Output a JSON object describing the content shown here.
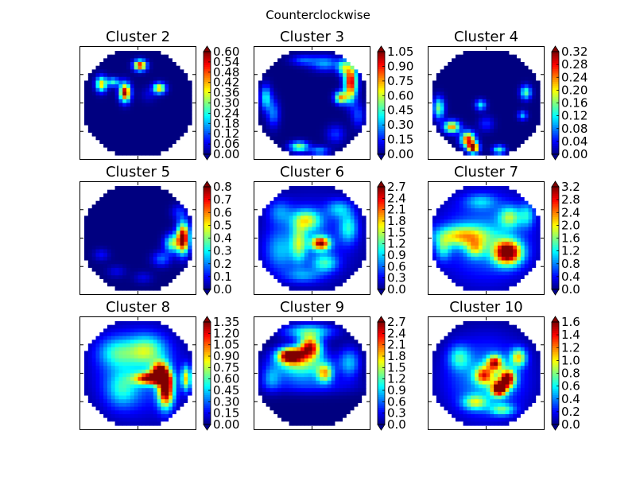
{
  "figure_title": "Counterclockwise",
  "chart_data": {
    "type": "heatmap",
    "colormap": "jet",
    "grid": false,
    "colorbar_extend": "both",
    "panels": [
      {
        "title": "Cluster 2",
        "vmax": 0.6,
        "ticks": [
          "0.00",
          "0.06",
          "0.12",
          "0.18",
          "0.24",
          "0.30",
          "0.36",
          "0.42",
          "0.48",
          "0.54",
          "0.60"
        ],
        "blobs": [
          {
            "x": 0.52,
            "y": 0.14,
            "sx": 0.04,
            "sy": 0.035,
            "a": 0.55
          },
          {
            "x": 0.38,
            "y": 0.4,
            "sx": 0.035,
            "sy": 0.06,
            "a": 0.6
          },
          {
            "x": 0.16,
            "y": 0.32,
            "sx": 0.035,
            "sy": 0.05,
            "a": 0.4
          },
          {
            "x": 0.7,
            "y": 0.36,
            "sx": 0.04,
            "sy": 0.035,
            "a": 0.42
          },
          {
            "x": 0.27,
            "y": 0.3,
            "sx": 0.04,
            "sy": 0.03,
            "a": 0.25
          },
          {
            "x": 0.6,
            "y": 0.42,
            "sx": 0.05,
            "sy": 0.05,
            "a": 0.05
          }
        ]
      },
      {
        "title": "Cluster 3",
        "vmax": 1.05,
        "ticks": [
          "0.00",
          "0.15",
          "0.30",
          "0.45",
          "0.60",
          "0.75",
          "0.90",
          "1.05"
        ],
        "blobs": [
          {
            "x": 0.86,
            "y": 0.3,
            "sx": 0.04,
            "sy": 0.12,
            "a": 1.0
          },
          {
            "x": 0.79,
            "y": 0.16,
            "sx": 0.04,
            "sy": 0.05,
            "a": 0.45
          },
          {
            "x": 0.62,
            "y": 0.12,
            "sx": 0.09,
            "sy": 0.05,
            "a": 0.3
          },
          {
            "x": 0.42,
            "y": 0.09,
            "sx": 0.08,
            "sy": 0.035,
            "a": 0.22
          },
          {
            "x": 0.77,
            "y": 0.45,
            "sx": 0.04,
            "sy": 0.04,
            "a": 0.75
          },
          {
            "x": 0.07,
            "y": 0.45,
            "sx": 0.035,
            "sy": 0.08,
            "a": 0.4
          },
          {
            "x": 0.14,
            "y": 0.6,
            "sx": 0.04,
            "sy": 0.09,
            "a": 0.26
          },
          {
            "x": 0.38,
            "y": 0.92,
            "sx": 0.06,
            "sy": 0.035,
            "a": 0.55
          },
          {
            "x": 0.57,
            "y": 0.96,
            "sx": 0.06,
            "sy": 0.03,
            "a": 0.3
          },
          {
            "x": 0.72,
            "y": 0.8,
            "sx": 0.06,
            "sy": 0.06,
            "a": 0.18
          },
          {
            "x": 0.93,
            "y": 0.62,
            "sx": 0.04,
            "sy": 0.08,
            "a": 0.2
          }
        ]
      },
      {
        "title": "Cluster 4",
        "vmax": 0.32,
        "ticks": [
          "0.00",
          "0.04",
          "0.08",
          "0.12",
          "0.16",
          "0.20",
          "0.24",
          "0.28",
          "0.32"
        ],
        "blobs": [
          {
            "x": 0.33,
            "y": 0.85,
            "sx": 0.045,
            "sy": 0.05,
            "a": 0.28
          },
          {
            "x": 0.38,
            "y": 0.93,
            "sx": 0.035,
            "sy": 0.035,
            "a": 0.32
          },
          {
            "x": 0.18,
            "y": 0.73,
            "sx": 0.05,
            "sy": 0.04,
            "a": 0.24
          },
          {
            "x": 0.06,
            "y": 0.55,
            "sx": 0.035,
            "sy": 0.07,
            "a": 0.16
          },
          {
            "x": 0.45,
            "y": 0.52,
            "sx": 0.035,
            "sy": 0.035,
            "a": 0.12
          },
          {
            "x": 0.87,
            "y": 0.4,
            "sx": 0.035,
            "sy": 0.045,
            "a": 0.15
          },
          {
            "x": 0.84,
            "y": 0.62,
            "sx": 0.03,
            "sy": 0.03,
            "a": 0.1
          },
          {
            "x": 0.62,
            "y": 0.95,
            "sx": 0.04,
            "sy": 0.03,
            "a": 0.14
          },
          {
            "x": 0.5,
            "y": 0.7,
            "sx": 0.05,
            "sy": 0.05,
            "a": 0.05
          }
        ]
      },
      {
        "title": "Cluster 5",
        "vmax": 0.8,
        "ticks": [
          "0.0",
          "0.1",
          "0.2",
          "0.3",
          "0.4",
          "0.5",
          "0.6",
          "0.7",
          "0.8"
        ],
        "blobs": [
          {
            "x": 0.92,
            "y": 0.5,
            "sx": 0.04,
            "sy": 0.1,
            "a": 0.85
          },
          {
            "x": 0.82,
            "y": 0.55,
            "sx": 0.05,
            "sy": 0.06,
            "a": 0.4
          },
          {
            "x": 0.72,
            "y": 0.7,
            "sx": 0.06,
            "sy": 0.05,
            "a": 0.18
          },
          {
            "x": 0.16,
            "y": 0.66,
            "sx": 0.05,
            "sy": 0.04,
            "a": 0.1
          },
          {
            "x": 0.3,
            "y": 0.82,
            "sx": 0.06,
            "sy": 0.04,
            "a": 0.08
          },
          {
            "x": 0.55,
            "y": 0.88,
            "sx": 0.06,
            "sy": 0.04,
            "a": 0.08
          },
          {
            "x": 0.88,
            "y": 0.25,
            "sx": 0.05,
            "sy": 0.05,
            "a": 0.12
          }
        ]
      },
      {
        "title": "Cluster 6",
        "vmax": 2.7,
        "ticks": [
          "0.0",
          "0.3",
          "0.6",
          "0.9",
          "1.2",
          "1.5",
          "1.8",
          "2.1",
          "2.4",
          "2.7"
        ],
        "blobs": [
          {
            "x": 0.58,
            "y": 0.55,
            "sx": 0.06,
            "sy": 0.045,
            "a": 2.3
          },
          {
            "x": 0.45,
            "y": 0.33,
            "sx": 0.09,
            "sy": 0.07,
            "a": 1.3
          },
          {
            "x": 0.38,
            "y": 0.55,
            "sx": 0.05,
            "sy": 0.12,
            "a": 1.1
          },
          {
            "x": 0.62,
            "y": 0.74,
            "sx": 0.08,
            "sy": 0.06,
            "a": 0.9
          },
          {
            "x": 0.84,
            "y": 0.4,
            "sx": 0.06,
            "sy": 0.1,
            "a": 0.9
          },
          {
            "x": 0.2,
            "y": 0.62,
            "sx": 0.1,
            "sy": 0.14,
            "a": 0.6
          },
          {
            "x": 0.75,
            "y": 0.22,
            "sx": 0.08,
            "sy": 0.06,
            "a": 0.7
          },
          {
            "x": 0.42,
            "y": 0.86,
            "sx": 0.12,
            "sy": 0.05,
            "a": 0.55
          },
          {
            "x": 0.2,
            "y": 0.25,
            "sx": 0.08,
            "sy": 0.08,
            "a": 0.55
          },
          {
            "x": 0.5,
            "y": 0.5,
            "sx": 0.3,
            "sy": 0.3,
            "a": 0.45
          }
        ]
      },
      {
        "title": "Cluster 7",
        "vmax": 3.2,
        "ticks": [
          "0.0",
          "0.4",
          "0.8",
          "1.2",
          "1.6",
          "2.0",
          "2.4",
          "2.8",
          "3.2"
        ],
        "blobs": [
          {
            "x": 0.7,
            "y": 0.64,
            "sx": 0.09,
            "sy": 0.08,
            "a": 3.3
          },
          {
            "x": 0.28,
            "y": 0.48,
            "sx": 0.18,
            "sy": 0.07,
            "a": 1.7
          },
          {
            "x": 0.4,
            "y": 0.6,
            "sx": 0.06,
            "sy": 0.06,
            "a": 1.2
          },
          {
            "x": 0.72,
            "y": 0.3,
            "sx": 0.07,
            "sy": 0.07,
            "a": 1.3
          },
          {
            "x": 0.88,
            "y": 0.28,
            "sx": 0.05,
            "sy": 0.08,
            "a": 0.9
          },
          {
            "x": 0.1,
            "y": 0.6,
            "sx": 0.05,
            "sy": 0.08,
            "a": 0.9
          },
          {
            "x": 0.45,
            "y": 0.15,
            "sx": 0.1,
            "sy": 0.05,
            "a": 0.7
          },
          {
            "x": 0.5,
            "y": 0.5,
            "sx": 0.32,
            "sy": 0.32,
            "a": 0.8
          }
        ]
      },
      {
        "title": "Cluster 8",
        "vmax": 1.35,
        "ticks": [
          "0.00",
          "0.15",
          "0.30",
          "0.45",
          "0.60",
          "0.75",
          "0.90",
          "1.05",
          "1.20",
          "1.35"
        ],
        "blobs": [
          {
            "x": 0.76,
            "y": 0.65,
            "sx": 0.05,
            "sy": 0.12,
            "a": 1.4
          },
          {
            "x": 0.62,
            "y": 0.55,
            "sx": 0.1,
            "sy": 0.04,
            "a": 1.2
          },
          {
            "x": 0.7,
            "y": 0.48,
            "sx": 0.05,
            "sy": 0.06,
            "a": 1.1
          },
          {
            "x": 0.95,
            "y": 0.55,
            "sx": 0.03,
            "sy": 0.08,
            "a": 0.8
          },
          {
            "x": 0.58,
            "y": 0.28,
            "sx": 0.12,
            "sy": 0.1,
            "a": 0.55
          },
          {
            "x": 0.3,
            "y": 0.3,
            "sx": 0.12,
            "sy": 0.1,
            "a": 0.4
          },
          {
            "x": 0.35,
            "y": 0.65,
            "sx": 0.1,
            "sy": 0.12,
            "a": 0.35
          },
          {
            "x": 0.5,
            "y": 0.5,
            "sx": 0.3,
            "sy": 0.3,
            "a": 0.3
          }
        ]
      },
      {
        "title": "Cluster 9",
        "vmax": 2.7,
        "ticks": [
          "0.0",
          "0.3",
          "0.6",
          "0.9",
          "1.2",
          "1.5",
          "1.8",
          "2.1",
          "2.4",
          "2.7"
        ],
        "blobs": [
          {
            "x": 0.3,
            "y": 0.33,
            "sx": 0.08,
            "sy": 0.05,
            "a": 2.8
          },
          {
            "x": 0.48,
            "y": 0.25,
            "sx": 0.07,
            "sy": 0.07,
            "a": 2.4
          },
          {
            "x": 0.4,
            "y": 0.42,
            "sx": 0.18,
            "sy": 0.1,
            "a": 1.3
          },
          {
            "x": 0.47,
            "y": 0.1,
            "sx": 0.16,
            "sy": 0.05,
            "a": 1.1
          },
          {
            "x": 0.62,
            "y": 0.5,
            "sx": 0.05,
            "sy": 0.06,
            "a": 1.5
          },
          {
            "x": 0.85,
            "y": 0.4,
            "sx": 0.07,
            "sy": 0.1,
            "a": 0.8
          },
          {
            "x": 0.12,
            "y": 0.55,
            "sx": 0.06,
            "sy": 0.08,
            "a": 0.6
          },
          {
            "x": 0.5,
            "y": 0.62,
            "sx": 0.3,
            "sy": 0.06,
            "a": 0.35
          }
        ]
      },
      {
        "title": "Cluster 10",
        "vmax": 1.6,
        "ticks": [
          "0.0",
          "0.2",
          "0.4",
          "0.6",
          "0.8",
          "1.0",
          "1.2",
          "1.4",
          "1.6"
        ],
        "blobs": [
          {
            "x": 0.62,
            "y": 0.65,
            "sx": 0.05,
            "sy": 0.05,
            "a": 1.6
          },
          {
            "x": 0.7,
            "y": 0.55,
            "sx": 0.05,
            "sy": 0.06,
            "a": 1.4
          },
          {
            "x": 0.58,
            "y": 0.4,
            "sx": 0.05,
            "sy": 0.05,
            "a": 1.2
          },
          {
            "x": 0.48,
            "y": 0.52,
            "sx": 0.06,
            "sy": 0.06,
            "a": 1.0
          },
          {
            "x": 0.8,
            "y": 0.35,
            "sx": 0.05,
            "sy": 0.06,
            "a": 0.9
          },
          {
            "x": 0.4,
            "y": 0.78,
            "sx": 0.08,
            "sy": 0.05,
            "a": 0.7
          },
          {
            "x": 0.65,
            "y": 0.85,
            "sx": 0.08,
            "sy": 0.04,
            "a": 0.6
          },
          {
            "x": 0.25,
            "y": 0.35,
            "sx": 0.07,
            "sy": 0.08,
            "a": 0.5
          },
          {
            "x": 0.5,
            "y": 0.55,
            "sx": 0.28,
            "sy": 0.28,
            "a": 0.45
          }
        ]
      }
    ]
  }
}
